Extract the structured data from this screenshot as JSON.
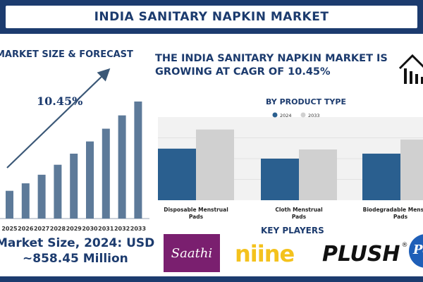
{
  "header": {
    "title": "INDIA SANITARY NAPKIN MARKET"
  },
  "left": {
    "heading": "MARKET SIZE & FORECAST",
    "cagr": "10.45%",
    "market_size_line1": "Market Size, 2024: USD",
    "market_size_line2": "~858.45 Million"
  },
  "right": {
    "heading_line1": "THE INDIA SANITARY NAPKIN MARKET IS",
    "heading_line2": "GROWING AT CAGR OF 10.45%"
  },
  "key_players": {
    "title": "KEY PLAYERS",
    "logos": [
      "Saathi",
      "niine",
      "PLUSH",
      "P&G"
    ]
  },
  "colors": {
    "navy": "#1c3b6e",
    "bar_steel": "#5d7a99",
    "series_2024": "#2a5f8f",
    "series_2033": "#d0d0d0"
  },
  "chart_data": [
    {
      "type": "bar",
      "title": "MARKET SIZE & FORECAST",
      "categories": [
        "2025",
        "2026",
        "2027",
        "2028",
        "2029",
        "2030",
        "2031",
        "2032",
        "2033"
      ],
      "values": [
        1.0,
        1.27,
        1.58,
        1.94,
        2.34,
        2.78,
        3.24,
        3.72,
        4.22
      ],
      "annotation": "10.45%"
    },
    {
      "type": "bar",
      "title": "BY PRODUCT TYPE",
      "categories": [
        "Disposable Menstrual Pads",
        "Cloth Menstrual Pads",
        "Biodegradable Menstrual Pads"
      ],
      "series": [
        {
          "name": "2024",
          "values": [
            62,
            50,
            56
          ]
        },
        {
          "name": "2033",
          "values": [
            85,
            61,
            73
          ]
        }
      ],
      "ylim": [
        0,
        100
      ],
      "legend": "top-center"
    }
  ]
}
